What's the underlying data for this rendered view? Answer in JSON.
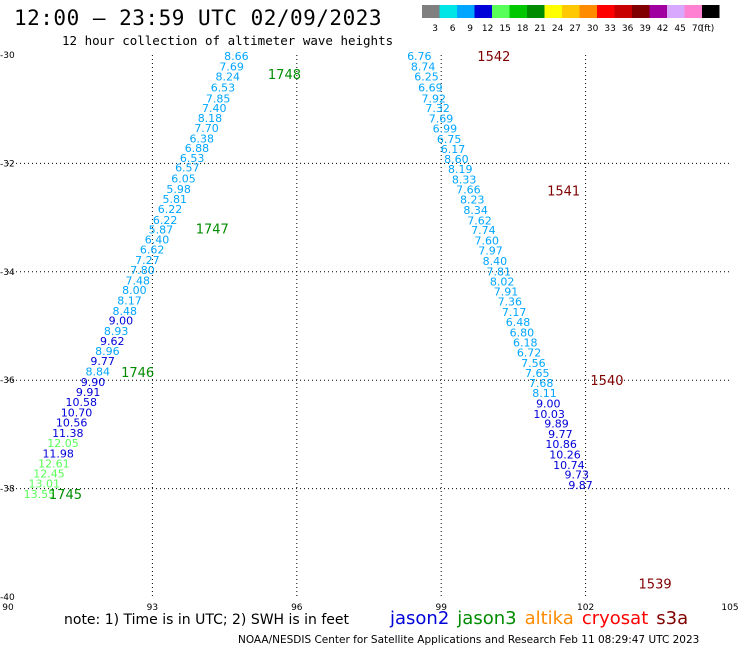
{
  "header": {
    "title": "12:00 – 23:59 UTC 02/09/2023",
    "subtitle": "12 hour collection of altimeter wave heights"
  },
  "legend": {
    "unit": "(ft)",
    "bins": [
      {
        "label": "3",
        "color": "#7f7f7f"
      },
      {
        "label": "6",
        "color": "#00e6e6"
      },
      {
        "label": "9",
        "color": "#00a6ff"
      },
      {
        "label": "12",
        "color": "#0000d9"
      },
      {
        "label": "15",
        "color": "#59ff59"
      },
      {
        "label": "18",
        "color": "#00c800"
      },
      {
        "label": "21",
        "color": "#008c00"
      },
      {
        "label": "24",
        "color": "#ffff00"
      },
      {
        "label": "27",
        "color": "#ffc800"
      },
      {
        "label": "30",
        "color": "#ff8c00"
      },
      {
        "label": "33",
        "color": "#ff0000"
      },
      {
        "label": "36",
        "color": "#c80000"
      },
      {
        "label": "39",
        "color": "#800000"
      },
      {
        "label": "42",
        "color": "#a000a0"
      },
      {
        "label": "45",
        "color": "#d8a8ff"
      },
      {
        "label": "70",
        "color": "#ff82d2"
      },
      {
        "label": "",
        "color": "#000000"
      }
    ]
  },
  "note": "note: 1) Time is in UTC; 2) SWH is in feet",
  "credit": "NOAA/NESDIS Center for Satellite Applications and Research    Feb 11 08:29:47 UTC 2023",
  "satellites": [
    {
      "name": "jason2",
      "color": "#0000d9"
    },
    {
      "name": "jason3",
      "color": "#008c00"
    },
    {
      "name": "altika",
      "color": "#ff8c00"
    },
    {
      "name": "cryosat",
      "color": "#ff0000"
    },
    {
      "name": "s3a",
      "color": "#800000"
    }
  ],
  "chart_data": {
    "type": "scatter",
    "xlim": [
      90,
      105
    ],
    "ylim": [
      -40,
      -30
    ],
    "x_ticks": [
      "90",
      "93",
      "96",
      "99",
      "102",
      "105"
    ],
    "y_ticks": [
      "-30",
      "-32",
      "-34",
      "-36",
      "-38",
      "-40"
    ],
    "grid": "dotted",
    "tracks": [
      {
        "color": "#008c00",
        "time_labels": [
          {
            "text": "1748",
            "lon": 95.4,
            "lat": -30.35
          },
          {
            "text": "1747",
            "lon": 93.9,
            "lat": -33.2
          },
          {
            "text": "1746",
            "lon": 92.35,
            "lat": -35.85
          },
          {
            "text": "1745",
            "lon": 90.85,
            "lat": -38.1
          }
        ],
        "points": [
          {
            "v": "8.66",
            "lon": 95.0,
            "lat": -30.02
          },
          {
            "v": "7.69",
            "lon": 94.9,
            "lat": -30.21
          },
          {
            "v": "8.24",
            "lon": 94.82,
            "lat": -30.4
          },
          {
            "v": "6.53",
            "lon": 94.72,
            "lat": -30.6
          },
          {
            "v": "7.85",
            "lon": 94.62,
            "lat": -30.8
          },
          {
            "v": "7.40",
            "lon": 94.54,
            "lat": -30.98
          },
          {
            "v": "8.18",
            "lon": 94.45,
            "lat": -31.16
          },
          {
            "v": "7.70",
            "lon": 94.38,
            "lat": -31.35
          },
          {
            "v": "6.38",
            "lon": 94.28,
            "lat": -31.54
          },
          {
            "v": "6.88",
            "lon": 94.18,
            "lat": -31.72
          },
          {
            "v": "6.53",
            "lon": 94.08,
            "lat": -31.9
          },
          {
            "v": "6.57",
            "lon": 93.98,
            "lat": -32.08
          },
          {
            "v": "6.05",
            "lon": 93.9,
            "lat": -32.28
          },
          {
            "v": "5.98",
            "lon": 93.8,
            "lat": -32.47
          },
          {
            "v": "5.81",
            "lon": 93.72,
            "lat": -32.66
          },
          {
            "v": "6.22",
            "lon": 93.62,
            "lat": -32.84
          },
          {
            "v": "6.22",
            "lon": 93.52,
            "lat": -33.04
          },
          {
            "v": "5.87",
            "lon": 93.43,
            "lat": -33.22
          },
          {
            "v": "6.40",
            "lon": 93.35,
            "lat": -33.4
          },
          {
            "v": "6.62",
            "lon": 93.25,
            "lat": -33.59
          },
          {
            "v": "7.27",
            "lon": 93.15,
            "lat": -33.78
          },
          {
            "v": "7.80",
            "lon": 93.05,
            "lat": -33.97
          },
          {
            "v": "7.48",
            "lon": 92.95,
            "lat": -34.16
          },
          {
            "v": "8.00",
            "lon": 92.88,
            "lat": -34.34
          },
          {
            "v": "8.17",
            "lon": 92.78,
            "lat": -34.53
          },
          {
            "v": "8.48",
            "lon": 92.68,
            "lat": -34.72
          },
          {
            "v": "9.00",
            "lon": 92.6,
            "lat": -34.9
          },
          {
            "v": "8.93",
            "lon": 92.5,
            "lat": -35.09
          },
          {
            "v": "9.62",
            "lon": 92.42,
            "lat": -35.28
          },
          {
            "v": "8.96",
            "lon": 92.32,
            "lat": -35.46
          },
          {
            "v": "9.77",
            "lon": 92.22,
            "lat": -35.65
          },
          {
            "v": "8.84",
            "lon": 92.12,
            "lat": -35.84
          },
          {
            "v": "9.90",
            "lon": 92.02,
            "lat": -36.03
          },
          {
            "v": "9.91",
            "lon": 91.92,
            "lat": -36.22
          },
          {
            "v": "10.58",
            "lon": 91.85,
            "lat": -36.4
          },
          {
            "v": "10.70",
            "lon": 91.75,
            "lat": -36.6
          },
          {
            "v": "10.56",
            "lon": 91.65,
            "lat": -36.78
          },
          {
            "v": "11.38",
            "lon": 91.57,
            "lat": -36.97
          },
          {
            "v": "12.05",
            "lon": 91.47,
            "lat": -37.16
          },
          {
            "v": "11.98",
            "lon": 91.37,
            "lat": -37.35
          },
          {
            "v": "12.61",
            "lon": 91.28,
            "lat": -37.54
          },
          {
            "v": "12.45",
            "lon": 91.18,
            "lat": -37.72
          },
          {
            "v": "13.01",
            "lon": 91.08,
            "lat": -37.91
          },
          {
            "v": "13.55",
            "lon": 90.98,
            "lat": -38.1
          }
        ]
      },
      {
        "color": "#800000",
        "time_labels": [
          {
            "text": "1542",
            "lon": 99.75,
            "lat": -30.02
          },
          {
            "text": "1541",
            "lon": 101.2,
            "lat": -32.5
          },
          {
            "text": "1540",
            "lon": 102.1,
            "lat": -36.0
          },
          {
            "text": "1539",
            "lon": 103.1,
            "lat": -39.75
          }
        ],
        "points": [
          {
            "v": "6.76",
            "lon": 98.8,
            "lat": -30.02
          },
          {
            "v": "8.74",
            "lon": 98.88,
            "lat": -30.21
          },
          {
            "v": "6.25",
            "lon": 98.95,
            "lat": -30.4
          },
          {
            "v": "6.69",
            "lon": 99.03,
            "lat": -30.6
          },
          {
            "v": "7.92",
            "lon": 99.1,
            "lat": -30.8
          },
          {
            "v": "7.32",
            "lon": 99.18,
            "lat": -30.98
          },
          {
            "v": "7.69",
            "lon": 99.25,
            "lat": -31.17
          },
          {
            "v": "6.99",
            "lon": 99.33,
            "lat": -31.36
          },
          {
            "v": "6.75",
            "lon": 99.42,
            "lat": -31.55
          },
          {
            "v": "6.17",
            "lon": 99.5,
            "lat": -31.73
          },
          {
            "v": "8.60",
            "lon": 99.57,
            "lat": -31.92
          },
          {
            "v": "8.19",
            "lon": 99.65,
            "lat": -32.1
          },
          {
            "v": "8.33",
            "lon": 99.73,
            "lat": -32.3
          },
          {
            "v": "7.66",
            "lon": 99.82,
            "lat": -32.48
          },
          {
            "v": "8.23",
            "lon": 99.9,
            "lat": -32.67
          },
          {
            "v": "8.34",
            "lon": 99.97,
            "lat": -32.86
          },
          {
            "v": "7.62",
            "lon": 100.05,
            "lat": -33.05
          },
          {
            "v": "7.74",
            "lon": 100.13,
            "lat": -33.23
          },
          {
            "v": "7.60",
            "lon": 100.2,
            "lat": -33.42
          },
          {
            "v": "7.97",
            "lon": 100.28,
            "lat": -33.61
          },
          {
            "v": "8.40",
            "lon": 100.37,
            "lat": -33.8
          },
          {
            "v": "7.81",
            "lon": 100.45,
            "lat": -33.99
          },
          {
            "v": "8.02",
            "lon": 100.52,
            "lat": -34.18
          },
          {
            "v": "7.91",
            "lon": 100.6,
            "lat": -34.36
          },
          {
            "v": "7.36",
            "lon": 100.68,
            "lat": -34.55
          },
          {
            "v": "7.17",
            "lon": 100.77,
            "lat": -34.74
          },
          {
            "v": "6.48",
            "lon": 100.85,
            "lat": -34.93
          },
          {
            "v": "6.80",
            "lon": 100.93,
            "lat": -35.12
          },
          {
            "v": "6.18",
            "lon": 101.0,
            "lat": -35.3
          },
          {
            "v": "6.72",
            "lon": 101.08,
            "lat": -35.49
          },
          {
            "v": "7.56",
            "lon": 101.17,
            "lat": -35.68
          },
          {
            "v": "7.65",
            "lon": 101.25,
            "lat": -35.87
          },
          {
            "v": "7.68",
            "lon": 101.33,
            "lat": -36.05
          },
          {
            "v": "8.11",
            "lon": 101.4,
            "lat": -36.24
          },
          {
            "v": "9.00",
            "lon": 101.48,
            "lat": -36.43
          },
          {
            "v": "10.03",
            "lon": 101.57,
            "lat": -36.62
          },
          {
            "v": "9.89",
            "lon": 101.65,
            "lat": -36.8
          },
          {
            "v": "9.77",
            "lon": 101.73,
            "lat": -36.99
          },
          {
            "v": "10.86",
            "lon": 101.82,
            "lat": -37.18
          },
          {
            "v": "10.26",
            "lon": 101.9,
            "lat": -37.37
          },
          {
            "v": "10.74",
            "lon": 101.98,
            "lat": -37.56
          },
          {
            "v": "9.73",
            "lon": 102.07,
            "lat": -37.74
          },
          {
            "v": "9.87",
            "lon": 102.15,
            "lat": -37.93
          }
        ]
      }
    ]
  }
}
